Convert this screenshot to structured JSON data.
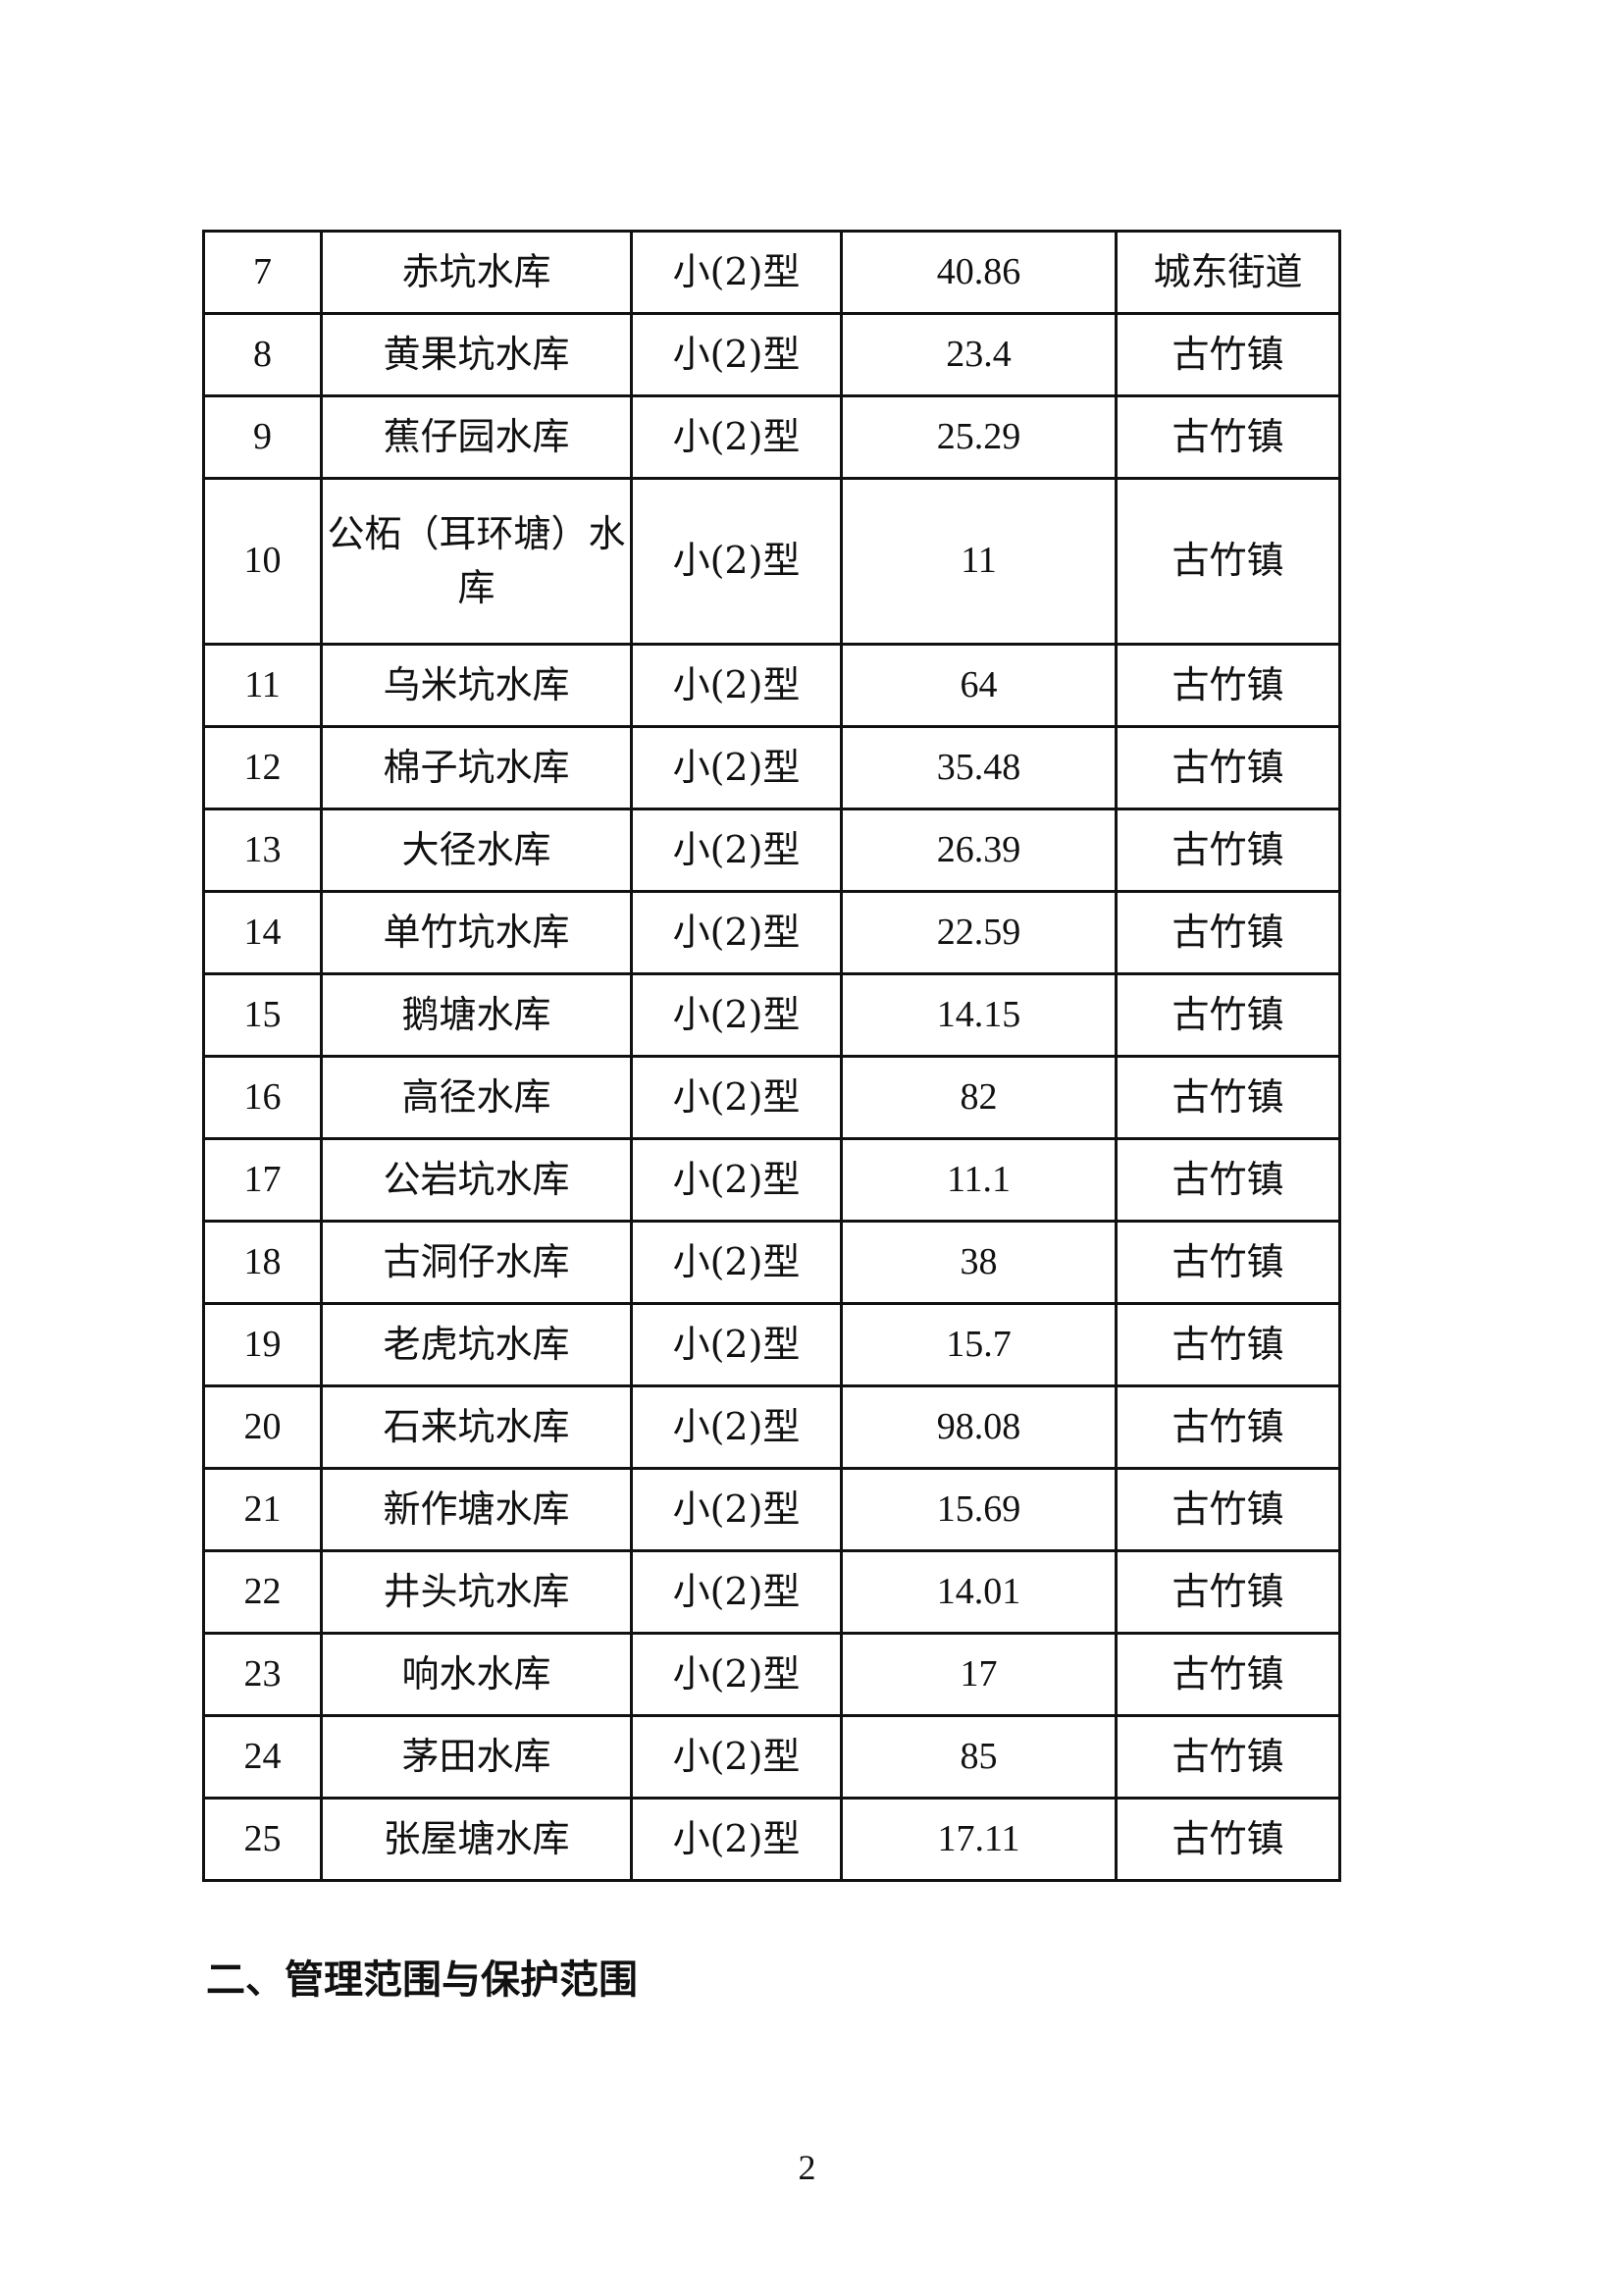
{
  "table": {
    "rows": [
      {
        "no": "7",
        "name": "赤坑水库",
        "type": "小(2)型",
        "value": "40.86",
        "town": "城东街道"
      },
      {
        "no": "8",
        "name": "黄果坑水库",
        "type": "小(2)型",
        "value": "23.4",
        "town": "古竹镇"
      },
      {
        "no": "9",
        "name": "蕉仔园水库",
        "type": "小(2)型",
        "value": "25.29",
        "town": "古竹镇"
      },
      {
        "no": "10",
        "name": "公柘（耳环塘）水库",
        "type": "小(2)型",
        "value": "11",
        "town": "古竹镇"
      },
      {
        "no": "11",
        "name": "乌米坑水库",
        "type": "小(2)型",
        "value": "64",
        "town": "古竹镇"
      },
      {
        "no": "12",
        "name": "棉子坑水库",
        "type": "小(2)型",
        "value": "35.48",
        "town": "古竹镇"
      },
      {
        "no": "13",
        "name": "大径水库",
        "type": "小(2)型",
        "value": "26.39",
        "town": "古竹镇"
      },
      {
        "no": "14",
        "name": "单竹坑水库",
        "type": "小(2)型",
        "value": "22.59",
        "town": "古竹镇"
      },
      {
        "no": "15",
        "name": "鹅塘水库",
        "type": "小(2)型",
        "value": "14.15",
        "town": "古竹镇"
      },
      {
        "no": "16",
        "name": "高径水库",
        "type": "小(2)型",
        "value": "82",
        "town": "古竹镇"
      },
      {
        "no": "17",
        "name": "公岩坑水库",
        "type": "小(2)型",
        "value": "11.1",
        "town": "古竹镇"
      },
      {
        "no": "18",
        "name": "古洞仔水库",
        "type": "小(2)型",
        "value": "38",
        "town": "古竹镇"
      },
      {
        "no": "19",
        "name": "老虎坑水库",
        "type": "小(2)型",
        "value": "15.7",
        "town": "古竹镇"
      },
      {
        "no": "20",
        "name": "石来坑水库",
        "type": "小(2)型",
        "value": "98.08",
        "town": "古竹镇"
      },
      {
        "no": "21",
        "name": "新作塘水库",
        "type": "小(2)型",
        "value": "15.69",
        "town": "古竹镇"
      },
      {
        "no": "22",
        "name": "井头坑水库",
        "type": "小(2)型",
        "value": "14.01",
        "town": "古竹镇"
      },
      {
        "no": "23",
        "name": "响水水库",
        "type": "小(2)型",
        "value": "17",
        "town": "古竹镇"
      },
      {
        "no": "24",
        "name": "茅田水库",
        "type": "小(2)型",
        "value": "85",
        "town": "古竹镇"
      },
      {
        "no": "25",
        "name": "张屋塘水库",
        "type": "小(2)型",
        "value": "17.11",
        "town": "古竹镇"
      }
    ]
  },
  "section_heading": "二、管理范围与保护范围",
  "page_number": "2"
}
